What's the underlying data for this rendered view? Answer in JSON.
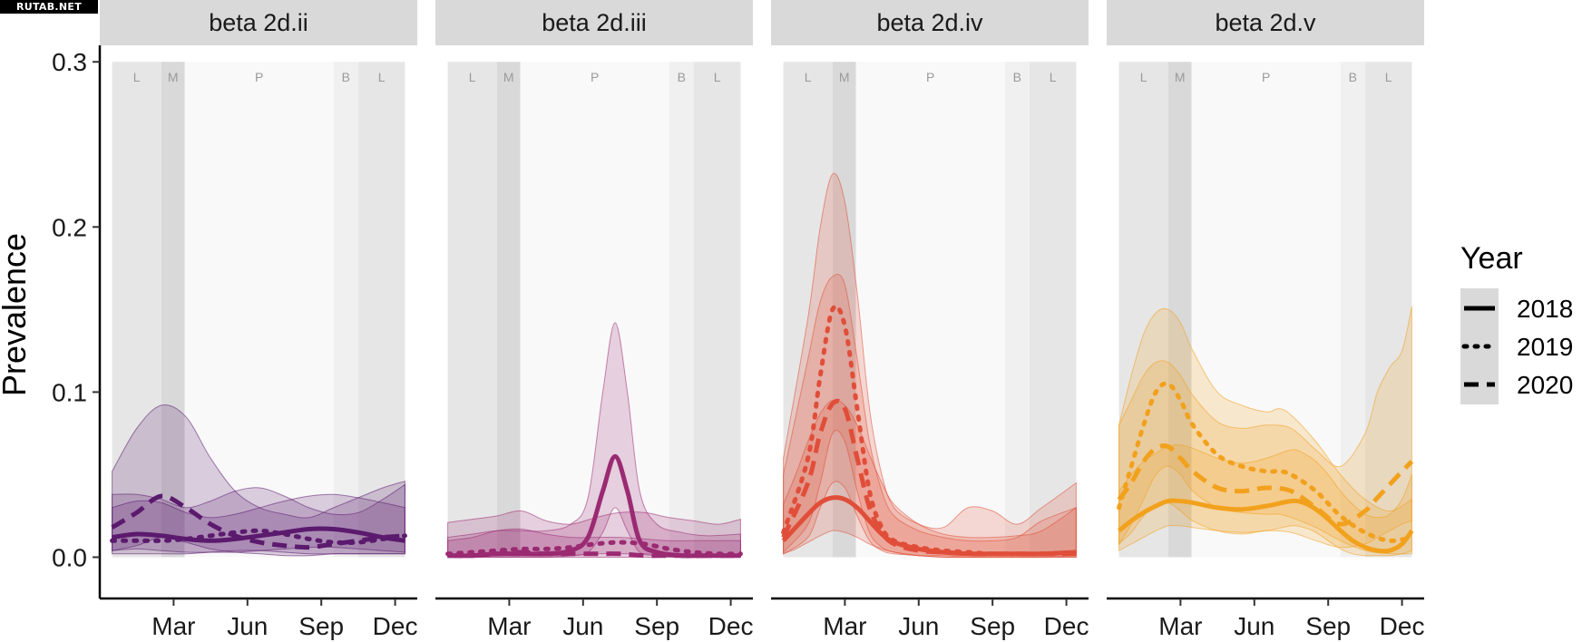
{
  "watermark": "RUTAB.NET",
  "chart_data": {
    "type": "line",
    "ylabel": "Prevalence",
    "xlabel": "",
    "ylim": [
      -0.025,
      0.31
    ],
    "y_ticks": [
      0.0,
      0.1,
      0.2,
      0.3
    ],
    "y_tick_labels": [
      "0.0",
      "0.1",
      "0.2",
      "0.3"
    ],
    "x_domain": [
      0,
      12.9
    ],
    "x_ticks": [
      {
        "label": "Mar",
        "month": 3
      },
      {
        "label": "Jun",
        "month": 6
      },
      {
        "label": "Sep",
        "month": 9
      },
      {
        "label": "Dec",
        "month": 12
      }
    ],
    "seasons": [
      {
        "label": "L",
        "start": 0.5,
        "end": 2.5,
        "shade": "#e6e6e6"
      },
      {
        "label": "M",
        "start": 2.5,
        "end": 3.45,
        "shade": "#d9d9d9"
      },
      {
        "label": "P",
        "start": 3.45,
        "end": 9.5,
        "shade": "#f9f9f9"
      },
      {
        "label": "B",
        "start": 9.5,
        "end": 10.5,
        "shade": "#f0f0f0"
      },
      {
        "label": "L",
        "start": 10.5,
        "end": 12.4,
        "shade": "#e6e6e6"
      }
    ],
    "legend": {
      "title": "Year",
      "position": "right",
      "items": [
        {
          "label": "2018",
          "dash": "solid"
        },
        {
          "label": "2019",
          "dash": "dotted"
        },
        {
          "label": "2020",
          "dash": "dashed"
        }
      ]
    },
    "grid": false,
    "panels": [
      {
        "title": "beta 2d.ii",
        "color": "#5b1a6e",
        "series": [
          {
            "year": "2018",
            "x": [
              0.5,
              1.5,
              2.5,
              3.5,
              4.5,
              5.5,
              6.5,
              7.5,
              8.5,
              9.5,
              10.5,
              11.5,
              12.4
            ],
            "y": [
              0.012,
              0.014,
              0.013,
              0.011,
              0.01,
              0.011,
              0.013,
              0.015,
              0.017,
              0.017,
              0.015,
              0.012,
              0.01
            ],
            "lo": [
              0.004,
              0.005,
              0.004,
              0.003,
              0.003,
              0.003,
              0.004,
              0.005,
              0.006,
              0.006,
              0.005,
              0.004,
              0.003
            ],
            "hi": [
              0.03,
              0.034,
              0.033,
              0.027,
              0.024,
              0.026,
              0.03,
              0.034,
              0.037,
              0.038,
              0.036,
              0.033,
              0.03
            ]
          },
          {
            "year": "2019",
            "x": [
              0.5,
              1.5,
              2.5,
              3.5,
              4.5,
              5.5,
              6.5,
              7.5,
              8.5,
              9.5,
              10.5,
              11.5,
              12.4
            ],
            "y": [
              0.01,
              0.01,
              0.01,
              0.011,
              0.013,
              0.015,
              0.016,
              0.014,
              0.011,
              0.009,
              0.009,
              0.011,
              0.013
            ],
            "lo": [
              0.002,
              0.002,
              0.002,
              0.002,
              0.003,
              0.004,
              0.004,
              0.003,
              0.002,
              0.002,
              0.002,
              0.002,
              0.002
            ],
            "hi": [
              0.038,
              0.038,
              0.035,
              0.03,
              0.034,
              0.04,
              0.042,
              0.037,
              0.03,
              0.026,
              0.027,
              0.035,
              0.044
            ]
          },
          {
            "year": "2020",
            "x": [
              0.5,
              1.5,
              2.5,
              3.5,
              4.5,
              5.5,
              6.5,
              7.5,
              8.5,
              9.5,
              10.5,
              11.5,
              12.4
            ],
            "y": [
              0.018,
              0.027,
              0.037,
              0.03,
              0.02,
              0.013,
              0.009,
              0.007,
              0.006,
              0.008,
              0.01,
              0.012,
              0.013
            ],
            "lo": [
              0.004,
              0.007,
              0.012,
              0.009,
              0.005,
              0.003,
              0.002,
              0.001,
              0.001,
              0.002,
              0.002,
              0.002,
              0.002
            ],
            "hi": [
              0.052,
              0.078,
              0.092,
              0.085,
              0.06,
              0.04,
              0.03,
              0.026,
              0.024,
              0.03,
              0.036,
              0.042,
              0.046
            ]
          }
        ]
      },
      {
        "title": "beta 2d.iii",
        "color": "#9a2a72",
        "series": [
          {
            "year": "2018",
            "x": [
              0.5,
              1.5,
              2.5,
              3.5,
              4.5,
              5.5,
              6.2,
              6.8,
              7.3,
              7.8,
              8.3,
              9.0,
              10.0,
              11.0,
              12.4
            ],
            "y": [
              0.001,
              0.001,
              0.002,
              0.002,
              0.002,
              0.004,
              0.012,
              0.04,
              0.061,
              0.04,
              0.01,
              0.003,
              0.001,
              0.001,
              0.001
            ],
            "lo": [
              0.0,
              0.0,
              0.0,
              0.0,
              0.0,
              0.001,
              0.003,
              0.015,
              0.03,
              0.016,
              0.003,
              0.001,
              0.0,
              0.0,
              0.0
            ],
            "hi": [
              0.012,
              0.014,
              0.016,
              0.016,
              0.016,
              0.02,
              0.036,
              0.1,
              0.142,
              0.1,
              0.04,
              0.02,
              0.015,
              0.013,
              0.014
            ]
          },
          {
            "year": "2019",
            "x": [
              0.5,
              1.5,
              2.5,
              3.5,
              4.5,
              5.5,
              6.5,
              7.5,
              8.5,
              9.5,
              10.5,
              11.5,
              12.4
            ],
            "y": [
              0.002,
              0.003,
              0.004,
              0.005,
              0.005,
              0.006,
              0.008,
              0.009,
              0.008,
              0.005,
              0.003,
              0.002,
              0.002
            ],
            "lo": [
              0.0,
              0.0,
              0.001,
              0.001,
              0.001,
              0.001,
              0.002,
              0.002,
              0.002,
              0.001,
              0.0,
              0.0,
              0.0
            ],
            "hi": [
              0.021,
              0.023,
              0.025,
              0.028,
              0.022,
              0.02,
              0.024,
              0.027,
              0.027,
              0.024,
              0.022,
              0.02,
              0.023
            ]
          },
          {
            "year": "2020",
            "x": [
              0.5,
              1.5,
              2.5,
              3.5,
              4.5,
              5.5,
              6.5,
              7.5,
              8.5,
              9.5,
              10.5,
              11.5,
              12.4
            ],
            "y": [
              0.001,
              0.001,
              0.002,
              0.003,
              0.002,
              0.002,
              0.002,
              0.002,
              0.001,
              0.001,
              0.001,
              0.001,
              0.001
            ],
            "lo": [
              0.0,
              0.0,
              0.0,
              0.0,
              0.0,
              0.0,
              0.0,
              0.0,
              0.0,
              0.0,
              0.0,
              0.0,
              0.0
            ],
            "hi": [
              0.01,
              0.012,
              0.016,
              0.017,
              0.014,
              0.012,
              0.012,
              0.012,
              0.011,
              0.01,
              0.01,
              0.01,
              0.01
            ]
          }
        ]
      },
      {
        "title": "beta 2d.iv",
        "color": "#e04e39",
        "series": [
          {
            "year": "2018",
            "x": [
              0.5,
              1.0,
              1.5,
              2.0,
              2.5,
              3.0,
              3.5,
              4.0,
              4.5,
              5.0,
              6.0,
              7.0,
              8.0,
              9.0,
              10.0,
              11.0,
              12.4
            ],
            "y": [
              0.01,
              0.018,
              0.026,
              0.033,
              0.036,
              0.035,
              0.03,
              0.022,
              0.014,
              0.009,
              0.005,
              0.003,
              0.002,
              0.002,
              0.002,
              0.002,
              0.003
            ],
            "lo": [
              0.002,
              0.005,
              0.009,
              0.013,
              0.016,
              0.015,
              0.012,
              0.008,
              0.005,
              0.003,
              0.001,
              0.0,
              0.0,
              0.0,
              0.0,
              0.0,
              0.001
            ],
            "hi": [
              0.032,
              0.05,
              0.07,
              0.087,
              0.095,
              0.092,
              0.08,
              0.062,
              0.045,
              0.032,
              0.02,
              0.014,
              0.012,
              0.012,
              0.013,
              0.016,
              0.03
            ]
          },
          {
            "year": "2019",
            "x": [
              0.5,
              1.5,
              2.0,
              2.5,
              3.0,
              3.5,
              4.0,
              4.5,
              5.0,
              6.0,
              7.0,
              8.0,
              9.0,
              10.0,
              11.0,
              12.4
            ],
            "y": [
              0.015,
              0.06,
              0.11,
              0.15,
              0.14,
              0.09,
              0.04,
              0.018,
              0.01,
              0.006,
              0.004,
              0.003,
              0.002,
              0.002,
              0.002,
              0.003
            ],
            "lo": [
              0.003,
              0.02,
              0.045,
              0.075,
              0.07,
              0.04,
              0.015,
              0.006,
              0.003,
              0.001,
              0.001,
              0.0,
              0.0,
              0.0,
              0.0,
              0.0
            ],
            "hi": [
              0.06,
              0.145,
              0.2,
              0.232,
              0.215,
              0.16,
              0.09,
              0.05,
              0.03,
              0.02,
              0.018,
              0.03,
              0.028,
              0.02,
              0.03,
              0.045
            ]
          },
          {
            "year": "2020",
            "x": [
              0.5,
              1.5,
              2.0,
              2.5,
              3.0,
              3.5,
              4.0,
              4.5,
              5.0,
              6.0,
              7.0,
              8.0,
              9.0,
              10.0,
              11.0,
              12.4
            ],
            "y": [
              0.012,
              0.045,
              0.075,
              0.093,
              0.09,
              0.06,
              0.03,
              0.015,
              0.008,
              0.004,
              0.003,
              0.002,
              0.002,
              0.002,
              0.002,
              0.002
            ],
            "lo": [
              0.002,
              0.012,
              0.03,
              0.045,
              0.042,
              0.025,
              0.01,
              0.004,
              0.002,
              0.001,
              0.0,
              0.0,
              0.0,
              0.0,
              0.0,
              0.0
            ],
            "hi": [
              0.05,
              0.12,
              0.155,
              0.17,
              0.165,
              0.12,
              0.07,
              0.04,
              0.025,
              0.016,
              0.012,
              0.01,
              0.01,
              0.012,
              0.022,
              0.03
            ]
          }
        ]
      },
      {
        "title": "beta 2d.v",
        "color": "#f2a11d",
        "series": [
          {
            "year": "2018",
            "x": [
              0.5,
              1.0,
              1.5,
              2.0,
              2.5,
              3.0,
              3.5,
              4.5,
              5.5,
              6.5,
              7.5,
              8.0,
              8.5,
              9.0,
              9.5,
              10.0,
              10.5,
              11.0,
              11.5,
              12.0,
              12.4
            ],
            "y": [
              0.016,
              0.022,
              0.027,
              0.031,
              0.034,
              0.034,
              0.033,
              0.03,
              0.029,
              0.031,
              0.034,
              0.033,
              0.029,
              0.023,
              0.016,
              0.01,
              0.006,
              0.004,
              0.004,
              0.008,
              0.016
            ],
            "lo": [
              0.004,
              0.008,
              0.012,
              0.016,
              0.019,
              0.019,
              0.018,
              0.016,
              0.015,
              0.016,
              0.019,
              0.018,
              0.015,
              0.01,
              0.005,
              0.002,
              0.001,
              0.001,
              0.001,
              0.002,
              0.004
            ],
            "hi": [
              0.04,
              0.05,
              0.058,
              0.063,
              0.067,
              0.068,
              0.066,
              0.06,
              0.057,
              0.06,
              0.065,
              0.063,
              0.058,
              0.05,
              0.04,
              0.032,
              0.026,
              0.024,
              0.026,
              0.035,
              0.05
            ]
          },
          {
            "year": "2019",
            "x": [
              0.5,
              1.0,
              1.5,
              2.0,
              2.5,
              3.0,
              3.5,
              4.5,
              5.5,
              6.5,
              7.0,
              7.5,
              8.5,
              9.5,
              10.5,
              11.5,
              12.4
            ],
            "y": [
              0.03,
              0.055,
              0.08,
              0.1,
              0.105,
              0.095,
              0.08,
              0.062,
              0.055,
              0.052,
              0.052,
              0.05,
              0.04,
              0.025,
              0.015,
              0.01,
              0.012
            ],
            "lo": [
              0.008,
              0.02,
              0.035,
              0.05,
              0.055,
              0.05,
              0.04,
              0.03,
              0.027,
              0.026,
              0.026,
              0.024,
              0.018,
              0.01,
              0.004,
              0.002,
              0.002
            ],
            "hi": [
              0.08,
              0.11,
              0.135,
              0.148,
              0.15,
              0.142,
              0.125,
              0.1,
              0.092,
              0.088,
              0.09,
              0.086,
              0.07,
              0.05,
              0.035,
              0.028,
              0.035
            ]
          },
          {
            "year": "2020",
            "x": [
              0.5,
              1.0,
              1.5,
              2.0,
              2.5,
              3.0,
              3.5,
              4.5,
              5.5,
              6.5,
              7.5,
              8.5,
              9.5,
              10.5,
              11.0,
              11.5,
              12.0,
              12.4
            ],
            "y": [
              0.035,
              0.045,
              0.058,
              0.066,
              0.067,
              0.06,
              0.052,
              0.042,
              0.04,
              0.042,
              0.04,
              0.03,
              0.02,
              0.028,
              0.036,
              0.044,
              0.052,
              0.058
            ],
            "lo": [
              0.008,
              0.015,
              0.025,
              0.032,
              0.033,
              0.028,
              0.022,
              0.016,
              0.014,
              0.016,
              0.015,
              0.01,
              0.006,
              0.008,
              0.012,
              0.016,
              0.02,
              0.022
            ],
            "hi": [
              0.08,
              0.095,
              0.11,
              0.118,
              0.118,
              0.11,
              0.098,
              0.082,
              0.078,
              0.08,
              0.078,
              0.065,
              0.055,
              0.075,
              0.1,
              0.115,
              0.125,
              0.152
            ]
          }
        ]
      }
    ]
  }
}
